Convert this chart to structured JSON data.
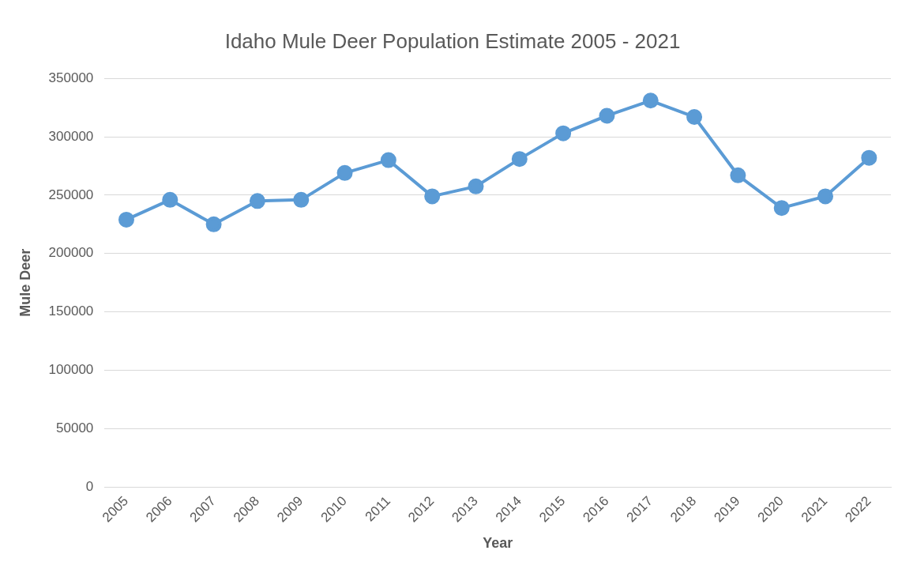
{
  "chart_data": {
    "type": "line",
    "title": "Idaho Mule Deer Population Estimate 2005 - 2021",
    "xlabel": "Year",
    "ylabel": "Mule Deer",
    "categories": [
      "2005",
      "2006",
      "2007",
      "2008",
      "2009",
      "2010",
      "2011",
      "2012",
      "2013",
      "2014",
      "2015",
      "2016",
      "2017",
      "2018",
      "2019",
      "2020",
      "2021",
      "2022"
    ],
    "series": [
      {
        "color": "#5b9bd5",
        "values": [
          229000,
          246000,
          225000,
          245000,
          246000,
          269000,
          280000,
          249000,
          257500,
          281000,
          303000,
          318000,
          331000,
          317000,
          267000,
          239000,
          249000,
          282000
        ]
      }
    ],
    "ylim": [
      0,
      350000
    ],
    "yticks": [
      0,
      50000,
      100000,
      150000,
      200000,
      250000,
      300000,
      350000
    ],
    "grid": "y",
    "legend": false,
    "marker": "circle",
    "line_style": "solid"
  }
}
